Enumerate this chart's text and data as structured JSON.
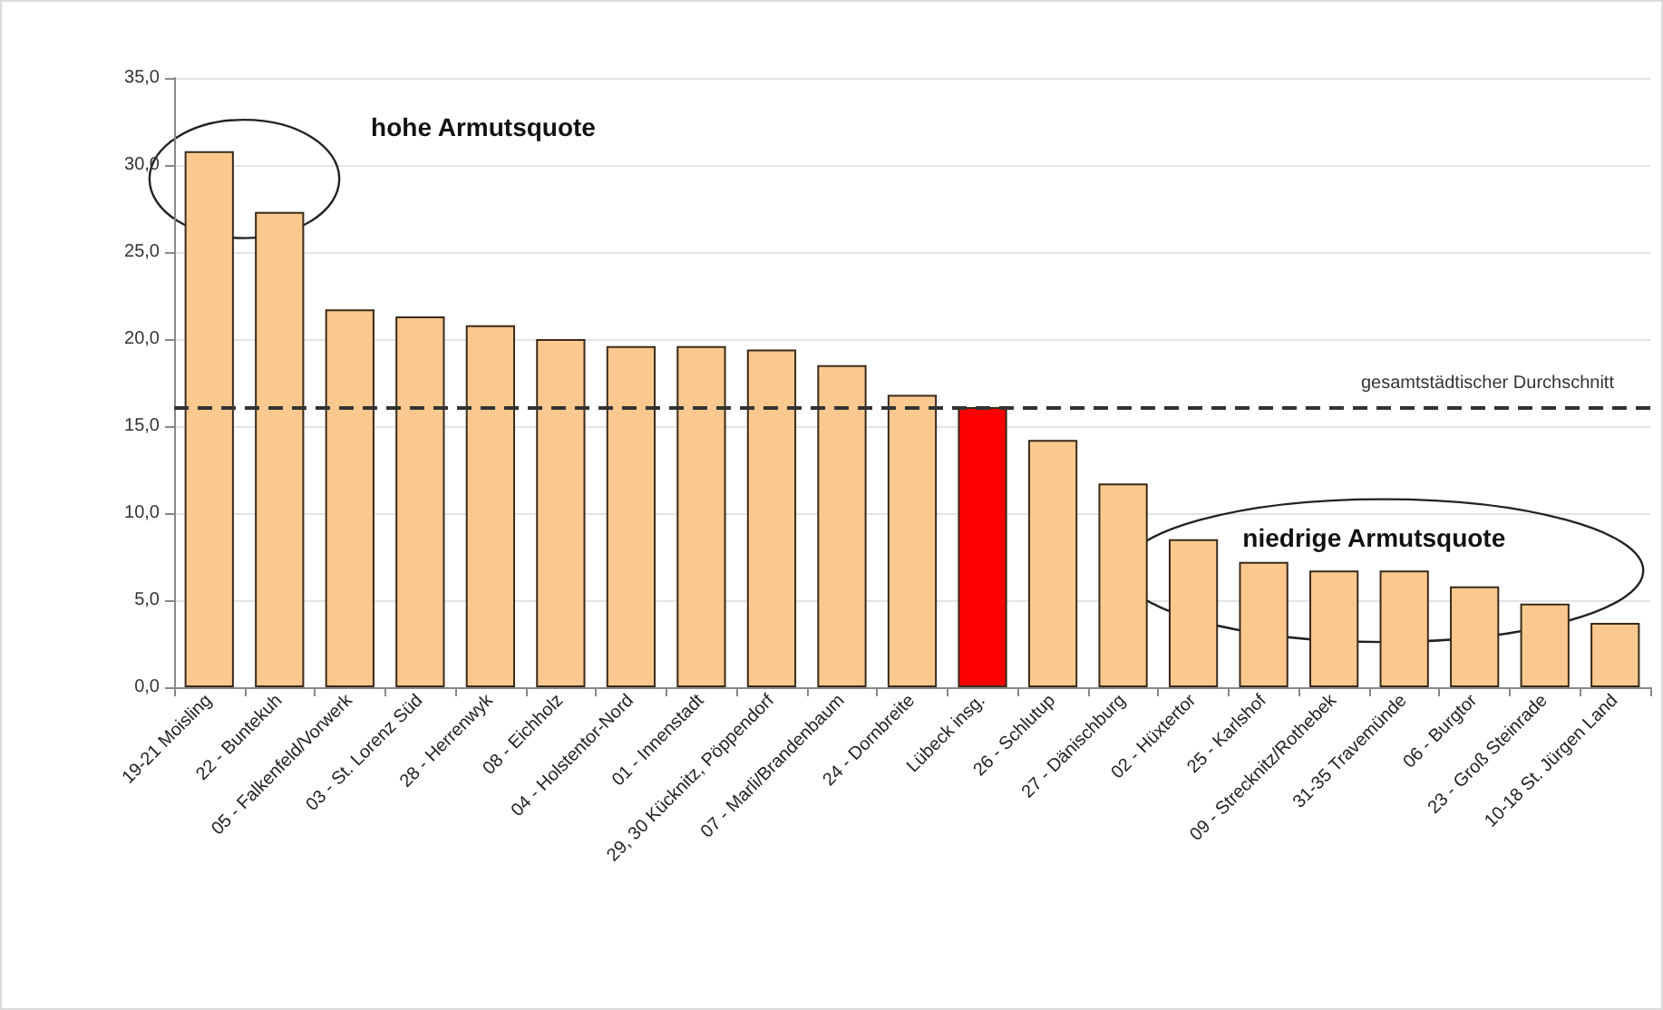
{
  "chart_data": {
    "type": "bar",
    "categories": [
      "19-21 Moisling",
      "22 - Buntekuh",
      "05 - Falkenfeld/Vorwerk",
      "03 - St. Lorenz Süd",
      "28 - Herrenwyk",
      "08 - Eichholz",
      "04 - Holstentor-Nord",
      "01 - Innenstadt",
      "29, 30 Kücknitz, Pöppendorf",
      "07 - Marli/Brandenbaum",
      "24 - Dornbreite",
      "Lübeck insg.",
      "26 - Schlutup",
      "27 - Dänischburg",
      "02 - Hüxtertor",
      "25 - Karlshof",
      "09 - Strecknitz/Rothebek",
      "31-35 Travemünde",
      "06 - Burgtor",
      "23 - Groß Steinrade",
      "10-18 St. Jürgen Land"
    ],
    "values": [
      30.8,
      27.3,
      21.7,
      21.3,
      20.8,
      20.0,
      19.6,
      19.6,
      19.4,
      18.5,
      16.8,
      16.1,
      14.2,
      11.7,
      8.5,
      7.2,
      6.7,
      6.7,
      5.8,
      4.8,
      3.7
    ],
    "colors": [
      "#fbc98f",
      "#fbc98f",
      "#fbc98f",
      "#fbc98f",
      "#fbc98f",
      "#fbc98f",
      "#fbc98f",
      "#fbc98f",
      "#fbc98f",
      "#fbc98f",
      "#fbc98f",
      "#ff0000",
      "#fbc98f",
      "#fbc98f",
      "#fbc98f",
      "#fbc98f",
      "#fbc98f",
      "#fbc98f",
      "#fbc98f",
      "#fbc98f",
      "#fbc98f"
    ],
    "ylim": [
      0,
      35
    ],
    "yticks": [
      {
        "value": 0,
        "label": "0,0"
      },
      {
        "value": 5,
        "label": "5,0"
      },
      {
        "value": 10,
        "label": "10,0"
      },
      {
        "value": 15,
        "label": "15,0"
      },
      {
        "value": 20,
        "label": "20,0"
      },
      {
        "value": 25,
        "label": "25,0"
      },
      {
        "value": 30,
        "label": "30,0"
      },
      {
        "value": 35,
        "label": "35,0"
      }
    ],
    "grid": "y",
    "ref_lines": [
      {
        "axis": "y",
        "value": 16.1,
        "label": "gesamtstädtischer Durchschnitt",
        "color": "#333333",
        "line_style": "dashed"
      }
    ],
    "annotations": [
      "hohe Armutsquote",
      "niedrige Armutsquote"
    ]
  }
}
